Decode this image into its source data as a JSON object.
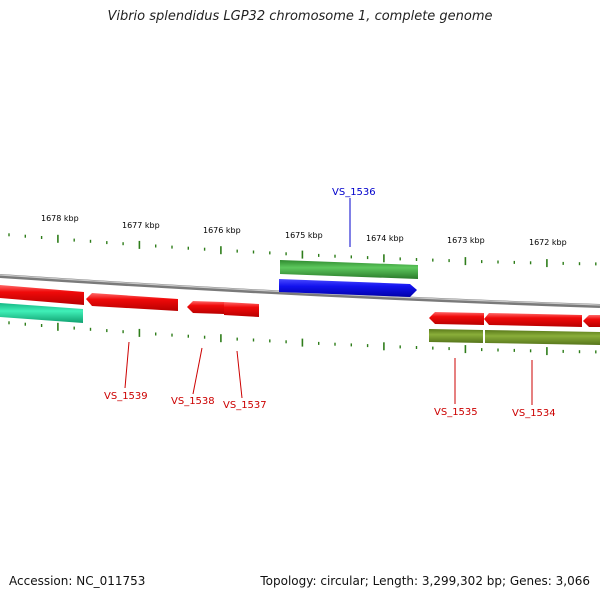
{
  "title": "Vibrio splendidus LGP32 chromosome 1, complete genome",
  "footer": {
    "accession": "Accession: NC_011753",
    "topology": "Topology: circular; Length: 3,299,302 bp; Genes: 3,066"
  },
  "scale": {
    "kbp_labels": [
      "1678 kbp",
      "1677 kbp",
      "1676 kbp",
      "1675 kbp",
      "1674 kbp",
      "1673 kbp",
      "1672 kbp"
    ]
  },
  "genes": [
    {
      "name": "VS_1536",
      "color": "#0000cc"
    },
    {
      "name": "VS_1539",
      "color": "#cc0000"
    },
    {
      "name": "VS_1538",
      "color": "#cc0000"
    },
    {
      "name": "VS_1537",
      "color": "#cc0000"
    },
    {
      "name": "VS_1535",
      "color": "#cc0000"
    },
    {
      "name": "VS_1534",
      "color": "#cc0000"
    }
  ],
  "colors": {
    "backbone": "#8c8c8c",
    "tick": "#2e7d1a",
    "gene_red": "#e8080c",
    "gene_blue": "#1010e6",
    "gene_green": "#3aa83a",
    "gene_teal": "#22e0a0",
    "gene_olive": "#6b8e23"
  }
}
